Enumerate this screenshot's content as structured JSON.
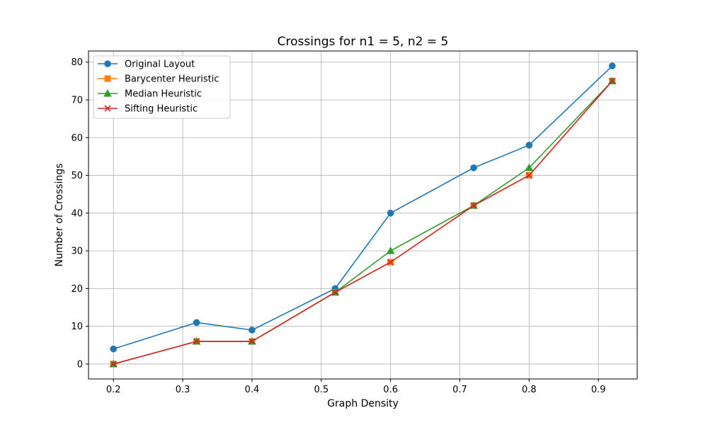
{
  "chart_data": {
    "type": "line",
    "title": "Crossings for n1 = 5, n2 = 5",
    "xlabel": "Graph Density",
    "ylabel": "Number of Crossings",
    "x": [
      0.2,
      0.32,
      0.4,
      0.52,
      0.6,
      0.72,
      0.8,
      0.92
    ],
    "xlim": [
      0.164,
      0.956
    ],
    "ylim": [
      -3.95,
      82.95
    ],
    "xticks": [
      0.2,
      0.3,
      0.4,
      0.5,
      0.6,
      0.7,
      0.8,
      0.9
    ],
    "xtick_labels": [
      "0.2",
      "0.3",
      "0.4",
      "0.5",
      "0.6",
      "0.7",
      "0.8",
      "0.9"
    ],
    "yticks": [
      0,
      10,
      20,
      30,
      40,
      50,
      60,
      70,
      80
    ],
    "ytick_labels": [
      "0",
      "10",
      "20",
      "30",
      "40",
      "50",
      "60",
      "70",
      "80"
    ],
    "grid": true,
    "legend_position": "top-left",
    "series": [
      {
        "name": "Original Layout",
        "values": [
          4,
          11,
          9,
          20,
          40,
          52,
          58,
          79
        ],
        "color": "#1f77b4",
        "marker": "circle"
      },
      {
        "name": "Barycenter Heuristic",
        "values": [
          0,
          6,
          6,
          19,
          27,
          42,
          50,
          75
        ],
        "color": "#ff7f0e",
        "marker": "square"
      },
      {
        "name": "Median Heuristic",
        "values": [
          0,
          6,
          6,
          19,
          30,
          42,
          52,
          75
        ],
        "color": "#2ca02c",
        "marker": "triangle"
      },
      {
        "name": "Sifting Heuristic",
        "values": [
          0,
          6,
          6,
          19,
          27,
          42,
          50,
          75
        ],
        "color": "#d62728",
        "marker": "x"
      }
    ]
  }
}
